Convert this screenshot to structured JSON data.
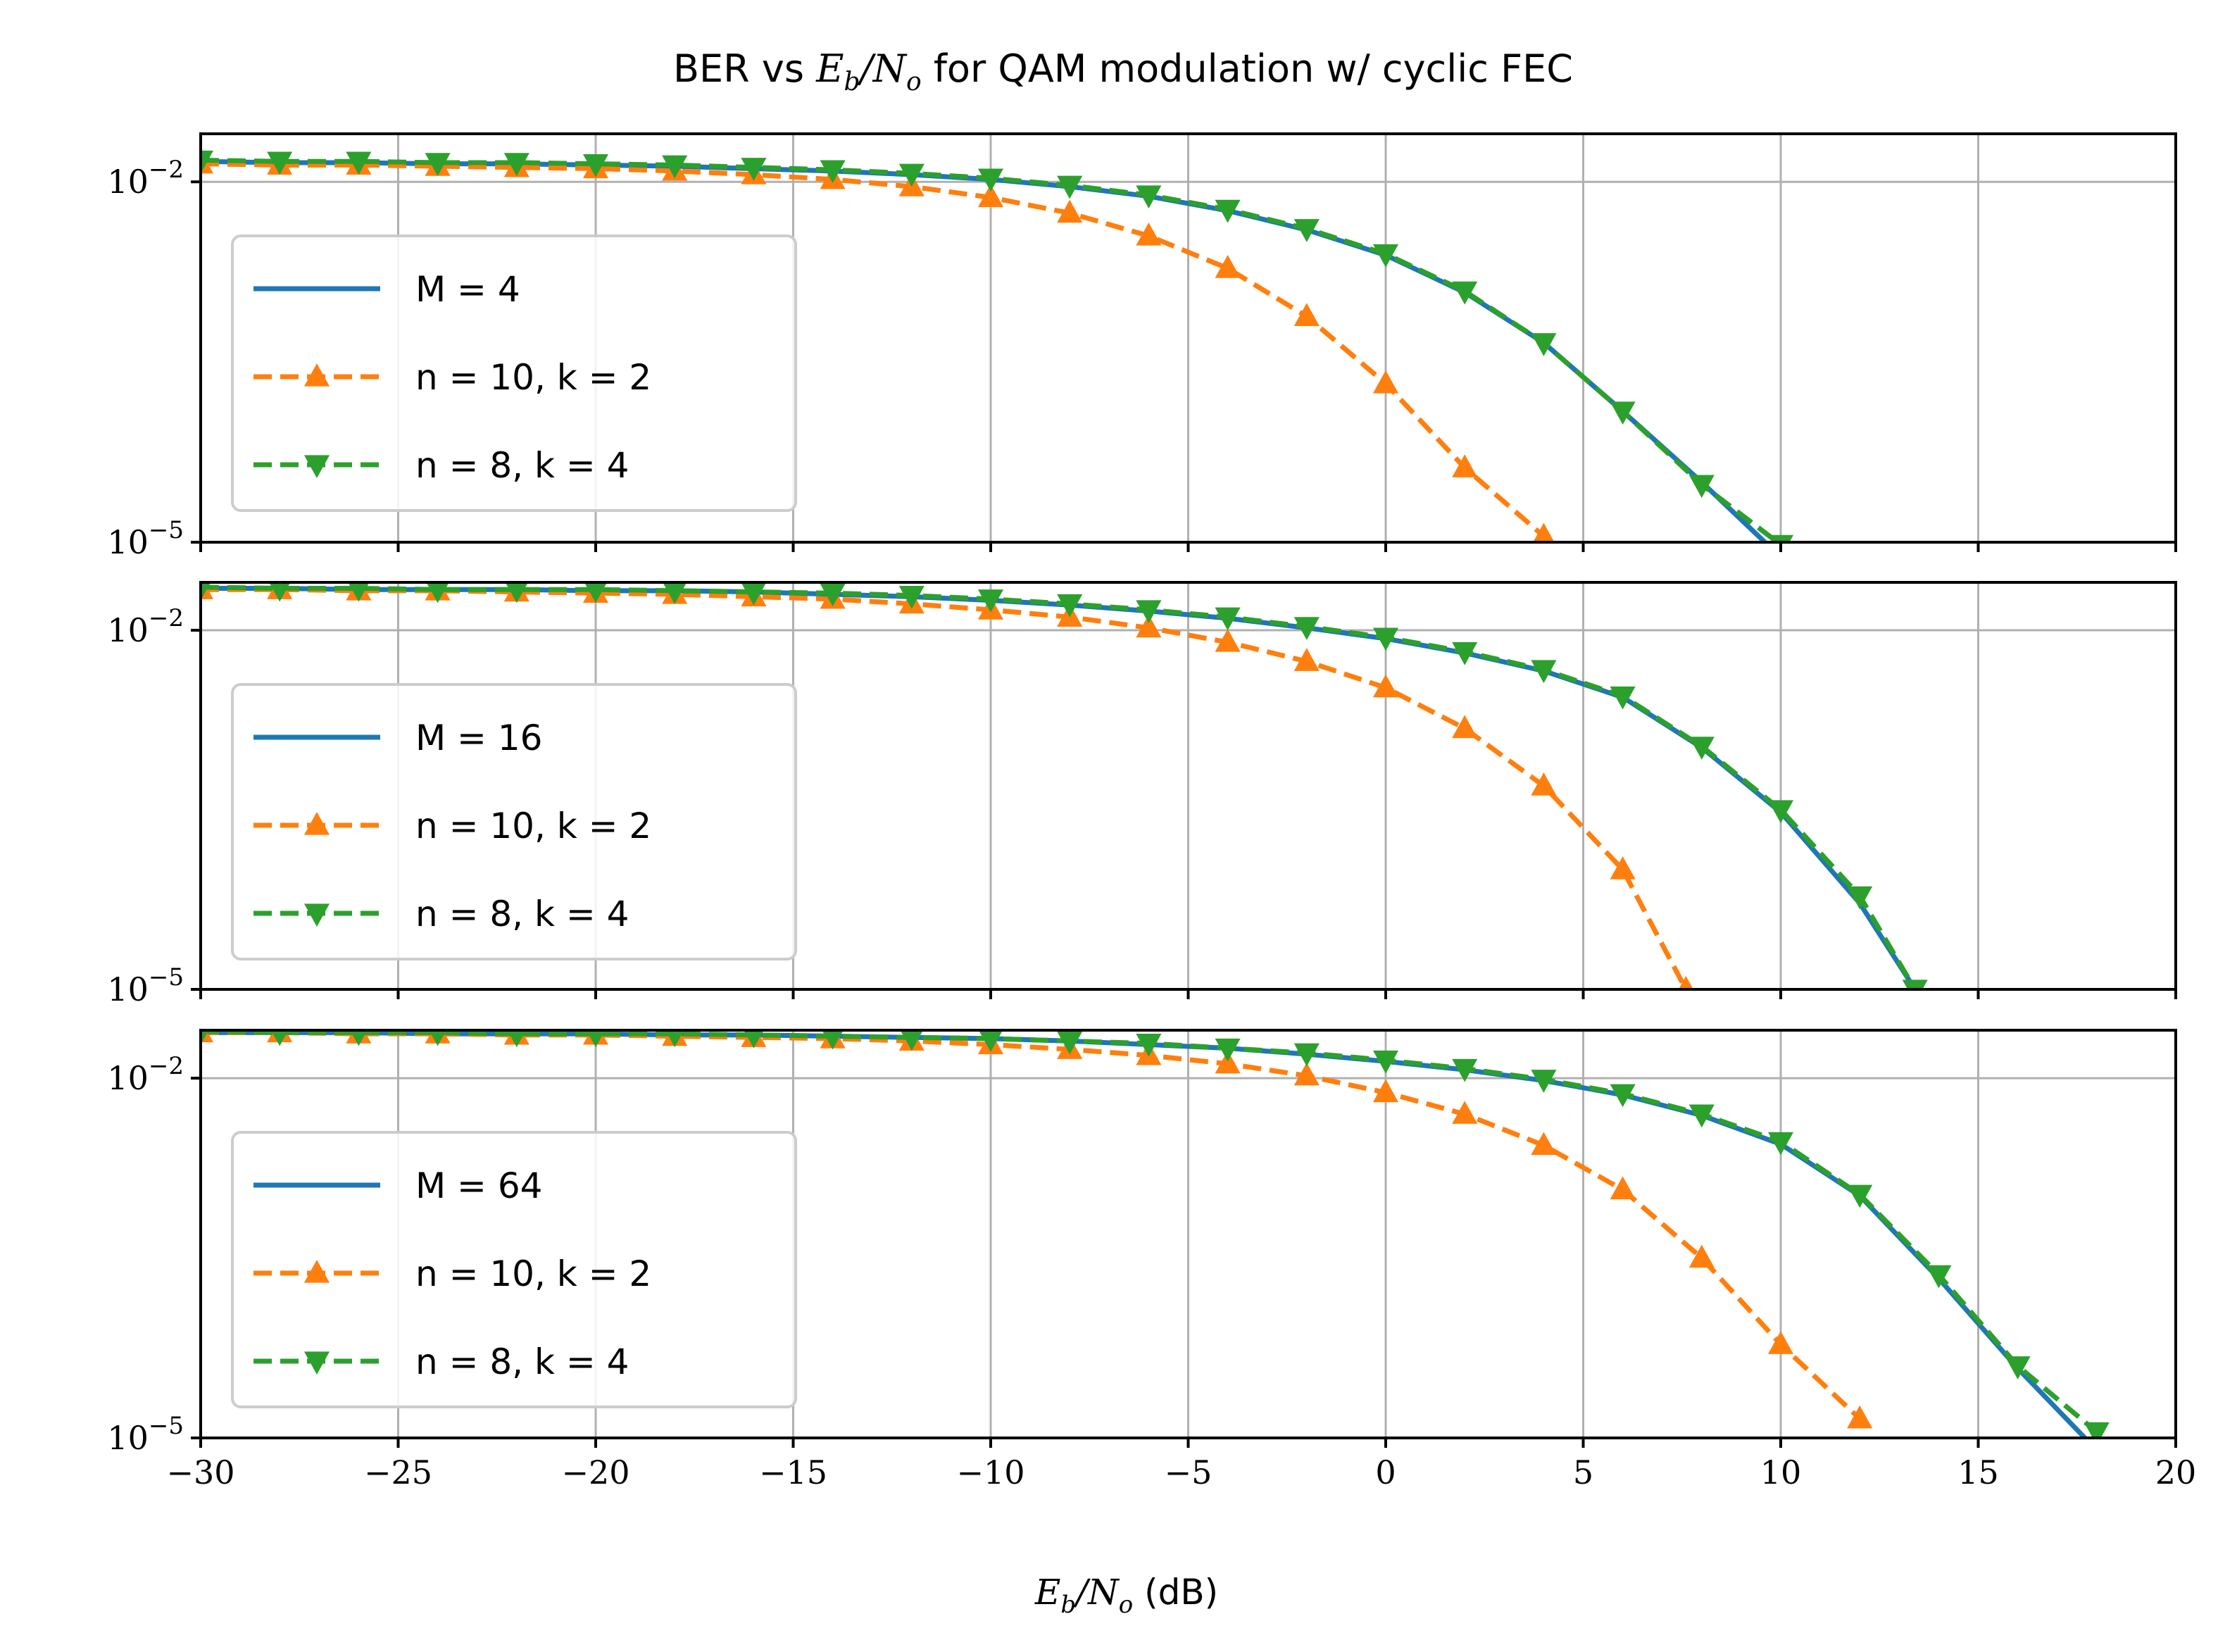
{
  "title": {
    "prefix": "BER vs ",
    "math_main": "E",
    "math_sub": "b",
    "math_slash": "/N",
    "math_sub2": "o",
    "suffix": " for QAM modulation w/ cyclic FEC"
  },
  "xlabel": {
    "math_main": "E",
    "math_sub": "b",
    "math_slash": "/N",
    "math_sub2": "o",
    "suffix": " (dB)"
  },
  "colors": {
    "uncoded": "#1f77b4",
    "code_10_2": "#ff7f0e",
    "code_8_4": "#2ca02c",
    "grid": "#b0b0b0"
  },
  "chart_data": [
    {
      "type": "line",
      "xlim": [
        -30,
        20
      ],
      "ylim_log10": [
        -5,
        -1.6
      ],
      "y_scale": "log",
      "grid": true,
      "legend_position": "center-left",
      "x_ticks": [
        "−30",
        "−25",
        "−20",
        "−15",
        "−10",
        "−5",
        "0",
        "5",
        "10",
        "15",
        "20"
      ],
      "y_ticks": [
        {
          "base": "10",
          "exp": "−2"
        },
        {
          "base": "10",
          "exp": "−5"
        }
      ],
      "series": [
        {
          "name": "M = 4",
          "style": "solid",
          "marker": "none",
          "x": [
            -30,
            -28,
            -26,
            -24,
            -22,
            -20,
            -18,
            -16,
            -14,
            -12,
            -10,
            -8,
            -6,
            -4,
            -2,
            0,
            2,
            4,
            6,
            8,
            9.6
          ],
          "log10_ber": [
            -1.83,
            -1.84,
            -1.84,
            -1.85,
            -1.85,
            -1.86,
            -1.87,
            -1.89,
            -1.91,
            -1.94,
            -1.98,
            -2.04,
            -2.12,
            -2.24,
            -2.4,
            -2.61,
            -2.92,
            -3.34,
            -3.91,
            -4.5,
            -5.0
          ]
        },
        {
          "name": "n = 10, k = 2",
          "style": "dashed",
          "marker": "triangle-up",
          "x": [
            -30,
            -28,
            -26,
            -24,
            -22,
            -20,
            -18,
            -16,
            -14,
            -12,
            -10,
            -8,
            -6,
            -4,
            -2,
            0,
            2,
            4
          ],
          "log10_ber": [
            -1.85,
            -1.86,
            -1.86,
            -1.87,
            -1.88,
            -1.89,
            -1.91,
            -1.94,
            -1.98,
            -2.04,
            -2.13,
            -2.26,
            -2.45,
            -2.72,
            -3.12,
            -3.68,
            -4.38,
            -4.95
          ]
        },
        {
          "name": "n = 8, k = 4",
          "style": "dashed",
          "marker": "triangle-down",
          "x": [
            -30,
            -28,
            -26,
            -24,
            -22,
            -20,
            -18,
            -16,
            -14,
            -12,
            -10,
            -8,
            -6,
            -4,
            -2,
            0,
            2,
            4,
            6,
            8,
            10
          ],
          "log10_ber": [
            -1.82,
            -1.83,
            -1.83,
            -1.84,
            -1.84,
            -1.85,
            -1.86,
            -1.88,
            -1.9,
            -1.93,
            -1.97,
            -2.03,
            -2.11,
            -2.23,
            -2.39,
            -2.6,
            -2.91,
            -3.34,
            -3.91,
            -4.52,
            -5.02
          ]
        }
      ]
    },
    {
      "type": "line",
      "xlim": [
        -30,
        20
      ],
      "ylim_log10": [
        -5,
        -1.6
      ],
      "y_scale": "log",
      "grid": true,
      "legend_position": "center-left",
      "x_ticks": [
        "−30",
        "−25",
        "−20",
        "−15",
        "−10",
        "−5",
        "0",
        "5",
        "10",
        "15",
        "20"
      ],
      "y_ticks": [
        {
          "base": "10",
          "exp": "−2"
        },
        {
          "base": "10",
          "exp": "−5"
        }
      ],
      "series": [
        {
          "name": "M = 16",
          "style": "solid",
          "marker": "none",
          "x": [
            -30,
            -28,
            -26,
            -24,
            -22,
            -20,
            -18,
            -16,
            -14,
            -12,
            -10,
            -8,
            -6,
            -4,
            -2,
            0,
            2,
            4,
            6,
            8,
            10,
            12,
            13.4
          ],
          "log10_ber": [
            -1.65,
            -1.65,
            -1.66,
            -1.66,
            -1.66,
            -1.67,
            -1.67,
            -1.68,
            -1.7,
            -1.72,
            -1.75,
            -1.79,
            -1.84,
            -1.9,
            -1.98,
            -2.07,
            -2.19,
            -2.34,
            -2.56,
            -2.98,
            -3.52,
            -4.28,
            -5.0
          ]
        },
        {
          "name": "n = 10, k = 2",
          "style": "dashed",
          "marker": "triangle-up",
          "x": [
            -30,
            -28,
            -26,
            -24,
            -22,
            -20,
            -18,
            -16,
            -14,
            -12,
            -10,
            -8,
            -6,
            -4,
            -2,
            0,
            2,
            4,
            6,
            7.6
          ],
          "log10_ber": [
            -1.66,
            -1.66,
            -1.67,
            -1.67,
            -1.68,
            -1.69,
            -1.7,
            -1.72,
            -1.74,
            -1.78,
            -1.83,
            -1.89,
            -1.98,
            -2.1,
            -2.26,
            -2.48,
            -2.82,
            -3.3,
            -4.0,
            -5.0
          ]
        },
        {
          "name": "n = 8, k = 4",
          "style": "dashed",
          "marker": "triangle-down",
          "x": [
            -30,
            -28,
            -26,
            -24,
            -22,
            -20,
            -18,
            -16,
            -14,
            -12,
            -10,
            -8,
            -6,
            -4,
            -2,
            0,
            2,
            4,
            6,
            8,
            10,
            12,
            13.4
          ],
          "log10_ber": [
            -1.64,
            -1.65,
            -1.65,
            -1.66,
            -1.66,
            -1.66,
            -1.67,
            -1.68,
            -1.69,
            -1.71,
            -1.74,
            -1.78,
            -1.83,
            -1.89,
            -1.97,
            -2.06,
            -2.18,
            -2.33,
            -2.55,
            -2.97,
            -3.5,
            -4.22,
            -5.0
          ]
        }
      ]
    },
    {
      "type": "line",
      "xlim": [
        -30,
        20
      ],
      "ylim_log10": [
        -5,
        -1.6
      ],
      "y_scale": "log",
      "grid": true,
      "legend_position": "center-left",
      "x_ticks": [
        "−30",
        "−25",
        "−20",
        "−15",
        "−10",
        "−5",
        "0",
        "5",
        "10",
        "15",
        "20"
      ],
      "y_ticks": [
        {
          "base": "10",
          "exp": "−2"
        },
        {
          "base": "10",
          "exp": "−5"
        }
      ],
      "series": [
        {
          "name": "M = 64",
          "style": "solid",
          "marker": "none",
          "x": [
            -30,
            -28,
            -26,
            -24,
            -22,
            -20,
            -18,
            -16,
            -14,
            -12,
            -10,
            -8,
            -6,
            -4,
            -2,
            0,
            2,
            4,
            6,
            8,
            10,
            12,
            14,
            16,
            17.7
          ],
          "log10_ber": [
            -1.62,
            -1.62,
            -1.62,
            -1.63,
            -1.63,
            -1.63,
            -1.64,
            -1.64,
            -1.65,
            -1.66,
            -1.67,
            -1.69,
            -1.72,
            -1.75,
            -1.8,
            -1.86,
            -1.93,
            -2.02,
            -2.14,
            -2.31,
            -2.55,
            -2.98,
            -3.67,
            -4.42,
            -5.0
          ]
        },
        {
          "name": "n = 10, k = 2",
          "style": "dashed",
          "marker": "triangle-up",
          "x": [
            -30,
            -28,
            -26,
            -24,
            -22,
            -20,
            -18,
            -16,
            -14,
            -12,
            -10,
            -8,
            -6,
            -4,
            -2,
            0,
            2,
            4,
            6,
            8,
            10,
            12
          ],
          "log10_ber": [
            -1.62,
            -1.62,
            -1.63,
            -1.63,
            -1.64,
            -1.64,
            -1.65,
            -1.66,
            -1.67,
            -1.69,
            -1.72,
            -1.76,
            -1.81,
            -1.88,
            -1.98,
            -2.12,
            -2.3,
            -2.56,
            -2.93,
            -3.5,
            -4.22,
            -4.84
          ]
        },
        {
          "name": "n = 8, k = 4",
          "style": "dashed",
          "marker": "triangle-down",
          "x": [
            -30,
            -28,
            -26,
            -24,
            -22,
            -20,
            -18,
            -16,
            -14,
            -12,
            -10,
            -8,
            -6,
            -4,
            -2,
            0,
            2,
            4,
            6,
            8,
            10,
            12,
            14,
            16,
            18
          ],
          "log10_ber": [
            -1.61,
            -1.62,
            -1.62,
            -1.62,
            -1.63,
            -1.63,
            -1.63,
            -1.64,
            -1.65,
            -1.66,
            -1.67,
            -1.69,
            -1.71,
            -1.75,
            -1.79,
            -1.85,
            -1.92,
            -2.01,
            -2.13,
            -2.3,
            -2.53,
            -2.97,
            -3.64,
            -4.4,
            -4.95
          ]
        }
      ]
    }
  ]
}
